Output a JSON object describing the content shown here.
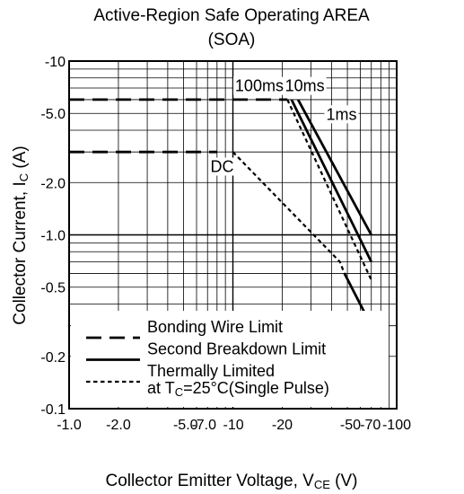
{
  "chart_data": {
    "type": "line",
    "title_line1": "Active-Region Safe Operating AREA",
    "title_line2": "(SOA)",
    "xlabel": {
      "text": "Collector Emitter Voltage, V",
      "sub": "CE",
      "unit": " (V)"
    },
    "ylabel": {
      "text": "Collector Current, I",
      "sub": "C",
      "unit": " (A)"
    },
    "x_scale": "log",
    "y_scale": "log",
    "xlim": [
      -1,
      -100
    ],
    "ylim": [
      -0.1,
      -10
    ],
    "grid": true,
    "x_ticks": [
      {
        "value": -1,
        "label": "-1.0"
      },
      {
        "value": -2,
        "label": "-2.0"
      },
      {
        "value": -5,
        "label": "-5.0"
      },
      {
        "value": -7,
        "label": "-7.0"
      },
      {
        "value": -10,
        "label": "-10"
      },
      {
        "value": -20,
        "label": "-20"
      },
      {
        "value": -50,
        "label": "-50"
      },
      {
        "value": -70,
        "label": "-70"
      },
      {
        "value": -100,
        "label": "-100"
      }
    ],
    "y_ticks": [
      {
        "value": -0.1,
        "label": "-0.1"
      },
      {
        "value": -0.2,
        "label": "-0.2"
      },
      {
        "value": -0.5,
        "label": "-0.5"
      },
      {
        "value": -1,
        "label": "-1.0"
      },
      {
        "value": -2,
        "label": "-2.0"
      },
      {
        "value": -5,
        "label": "-5.0"
      },
      {
        "value": -10,
        "label": "-10"
      }
    ],
    "series": [
      {
        "style": "long-dash",
        "x": [
          -1.0,
          -21.5
        ],
        "y": [
          -6.0,
          -6.0
        ]
      },
      {
        "style": "long-dash",
        "x": [
          -1.0,
          -8.0
        ],
        "y": [
          -3.0,
          -3.0
        ]
      },
      {
        "style": "solid",
        "x": [
          -25.0,
          -70.0
        ],
        "y": [
          -6.0,
          -1.0
        ]
      },
      {
        "style": "solid",
        "x": [
          -22.8,
          -70.0
        ],
        "y": [
          -6.0,
          -0.7
        ]
      },
      {
        "style": "solid",
        "x": [
          -48.0,
          -70.0
        ],
        "y": [
          -0.6,
          -0.3
        ]
      },
      {
        "style": "dotted",
        "x": [
          -10.0,
          -45.0,
          -48.0
        ],
        "y": [
          -3.0,
          -0.7,
          -0.6
        ]
      },
      {
        "style": "dotted",
        "x": [
          -21.5,
          -70.0
        ],
        "y": [
          -6.0,
          -0.55
        ]
      }
    ],
    "annotations": [
      {
        "text": "100ms",
        "x": -14.5,
        "y": -6.7
      },
      {
        "text": "10ms",
        "x": -27.5,
        "y": -6.7
      },
      {
        "text": "1ms",
        "x": -46.0,
        "y": -4.6
      },
      {
        "text": "DC",
        "x": -8.6,
        "y": -2.3
      }
    ],
    "legend": {
      "position": "bottom-left",
      "entries": [
        {
          "style": "long-dash",
          "label": "Bonding Wire Limit"
        },
        {
          "style": "solid",
          "label": "Second Breakdown Limit"
        },
        {
          "style": "dotted",
          "label": "Thermally Limited"
        }
      ],
      "note": {
        "prefix": "at T",
        "sub": "C",
        "suffix": "=25°C(Single Pulse)"
      }
    }
  }
}
